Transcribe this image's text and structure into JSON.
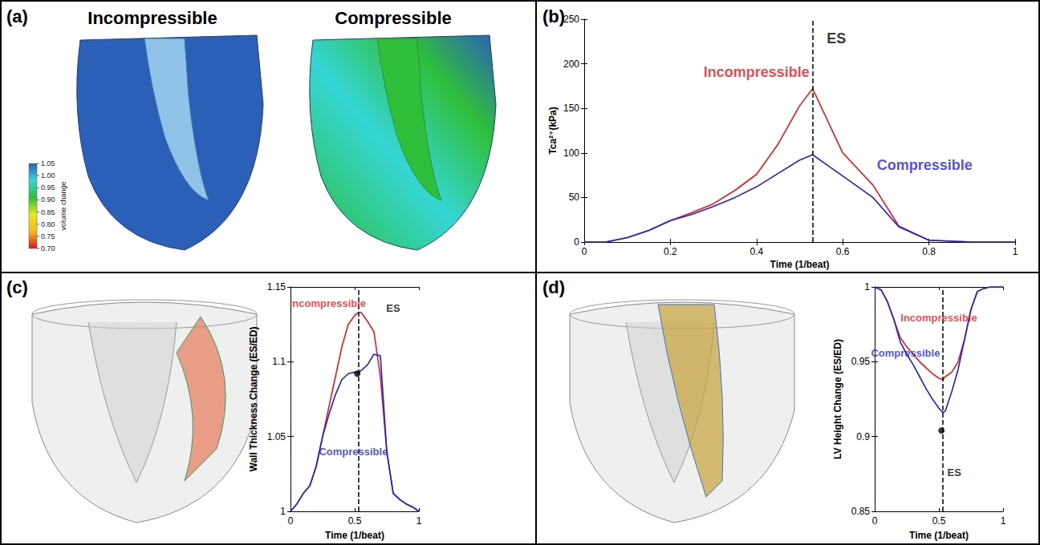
{
  "chart_data": [
    {
      "panel": "(a)",
      "type": "image",
      "titles": [
        "Incompressible",
        "Compressible"
      ],
      "colorbar": {
        "label": "volume change",
        "range": [
          0.7,
          1.05
        ],
        "ticks": [
          {
            "value": 0.7,
            "label": "0.70"
          },
          0.75,
          {
            "value": 0.8,
            "label": "0.80"
          },
          0.85,
          {
            "value": 0.9,
            "label": "0.90"
          },
          0.95,
          {
            "value": 1,
            "label": "1.00"
          },
          1.05
        ],
        "colors": [
          "#d7191c",
          "#f6b91a",
          "#e8e81a",
          "#2fbf3a",
          "#35d6d6",
          "#2c5fb8"
        ]
      }
    },
    {
      "panel": "(b)",
      "type": "line",
      "x_label": "Time (1/beat)",
      "y_label": "Tca²⁺(kPa)",
      "x": [
        0,
        0.05,
        0.1,
        0.15,
        0.2,
        0.25,
        0.3,
        0.35,
        0.4,
        0.45,
        0.5,
        0.53,
        0.6,
        0.67,
        0.73,
        0.8,
        0.9,
        1
      ],
      "series": [
        {
          "name": "Incompressible",
          "color": "#e41a1c",
          "values": [
            0,
            0,
            5,
            13,
            24,
            33,
            43,
            58,
            76,
            110,
            153,
            172,
            100,
            64,
            18,
            2,
            0,
            0
          ]
        },
        {
          "name": "Compressible",
          "color": "#1f1fe0",
          "values": [
            0,
            0,
            5,
            13,
            24,
            31,
            40,
            50,
            62,
            77,
            92,
            98,
            74,
            50,
            17,
            2,
            0,
            0
          ]
        }
      ],
      "xlim": [
        0,
        1
      ],
      "xticks": [
        0,
        0.2,
        0.4,
        0.6,
        0.8,
        1
      ],
      "ylim": [
        0,
        250
      ],
      "yticks": [
        0,
        50,
        100,
        150,
        200,
        250
      ],
      "grid": false,
      "reference_line": {
        "x": 0.525,
        "line_style": "dashed"
      },
      "annotations": [
        {
          "text": "ES",
          "x": 0.585,
          "y": 228,
          "color": "#000000"
        },
        {
          "text": "Incompressible",
          "x": 0.4,
          "y": 191,
          "color": "#e41a1c"
        },
        {
          "text": "Compressible",
          "x": 0.79,
          "y": 86,
          "color": "#1f1fe0"
        }
      ]
    },
    {
      "panel": "(c)",
      "type": "line",
      "x_label": "Time (1/beat)",
      "y_label": "Wall Thickness Change (ES/ED)",
      "x": [
        0,
        0.05,
        0.1,
        0.15,
        0.2,
        0.25,
        0.3,
        0.35,
        0.4,
        0.45,
        0.5,
        0.53,
        0.55,
        0.6,
        0.65,
        0.7,
        0.75,
        0.8,
        0.85,
        0.9,
        0.95,
        1
      ],
      "series": [
        {
          "name": "Incompressible",
          "color": "#e41a1c",
          "values": [
            1.0,
            1.005,
            1.012,
            1.017,
            1.03,
            1.05,
            1.07,
            1.09,
            1.11,
            1.125,
            1.131,
            1.133,
            1.133,
            1.127,
            1.12,
            1.09,
            1.04,
            1.012,
            1.008,
            1.005,
            1.003,
            1.0
          ]
        },
        {
          "name": "Compressible",
          "color": "#1f1fe0",
          "values": [
            1.0,
            1.005,
            1.012,
            1.017,
            1.03,
            1.05,
            1.065,
            1.078,
            1.088,
            1.092,
            1.093,
            1.093,
            1.094,
            1.098,
            1.105,
            1.104,
            1.04,
            1.012,
            1.008,
            1.005,
            1.003,
            1.0
          ]
        },
        {
          "type": "scatter",
          "marker": "circle",
          "color": "#000000",
          "x": [
            0.52
          ],
          "values": [
            1.092
          ]
        }
      ],
      "xlim": [
        0,
        1
      ],
      "xticks": [
        0,
        0.5,
        1
      ],
      "ylim": [
        1,
        1.15
      ],
      "yticks": [
        1,
        1.05,
        1.1,
        1.15
      ],
      "grid": false,
      "reference_line": {
        "x": 0.525,
        "line_style": "dashed"
      },
      "annotations": [
        {
          "text": "ES",
          "x": 0.8,
          "y": 1.136,
          "color": "#000000"
        },
        {
          "text": "Incompressible",
          "x": 0.29,
          "y": 1.139,
          "color": "#e41a1c"
        },
        {
          "text": "Compressible",
          "x": 0.49,
          "y": 1.04,
          "color": "#1f1fe0"
        }
      ]
    },
    {
      "panel": "(d)",
      "type": "line",
      "x_label": "Time (1/beat)",
      "y_label": "LV Height Change (ES/ED)",
      "x": [
        0,
        0.05,
        0.1,
        0.15,
        0.2,
        0.25,
        0.3,
        0.35,
        0.4,
        0.45,
        0.5,
        0.53,
        0.55,
        0.6,
        0.65,
        0.7,
        0.75,
        0.8,
        0.85,
        0.9,
        0.95,
        1
      ],
      "series": [
        {
          "name": "Incompressible",
          "color": "#e41a1c",
          "values": [
            1.0,
            0.998,
            0.99,
            0.978,
            0.966,
            0.96,
            0.955,
            0.95,
            0.946,
            0.942,
            0.939,
            0.938,
            0.94,
            0.943,
            0.95,
            0.965,
            0.985,
            0.997,
            0.999,
            1.0,
            1.0,
            1.0
          ]
        },
        {
          "name": "Compressible",
          "color": "#1f1fe0",
          "values": [
            1.0,
            0.998,
            0.99,
            0.978,
            0.963,
            0.955,
            0.948,
            0.94,
            0.932,
            0.925,
            0.919,
            0.916,
            0.917,
            0.93,
            0.945,
            0.965,
            0.985,
            0.997,
            0.999,
            1.0,
            1.0,
            1.0
          ]
        },
        {
          "type": "scatter",
          "marker": "circle",
          "color": "#000000",
          "x": [
            0.52
          ],
          "values": [
            0.904
          ]
        }
      ],
      "xlim": [
        0,
        1
      ],
      "xticks": [
        0,
        0.5,
        1
      ],
      "ylim": [
        0.85,
        1
      ],
      "yticks": [
        0.85,
        0.9,
        0.95,
        1
      ],
      "grid": false,
      "reference_line": {
        "x": 0.525,
        "line_style": "dashed"
      },
      "annotations": [
        {
          "text": "ES",
          "x": 0.62,
          "y": 0.876,
          "color": "#000000"
        },
        {
          "text": "Incompressible",
          "x": 0.5,
          "y": 0.9795,
          "color": "#e41a1c"
        },
        {
          "text": "Compressible",
          "x": 0.24,
          "y": 0.956,
          "color": "#1f1fe0"
        }
      ]
    }
  ]
}
